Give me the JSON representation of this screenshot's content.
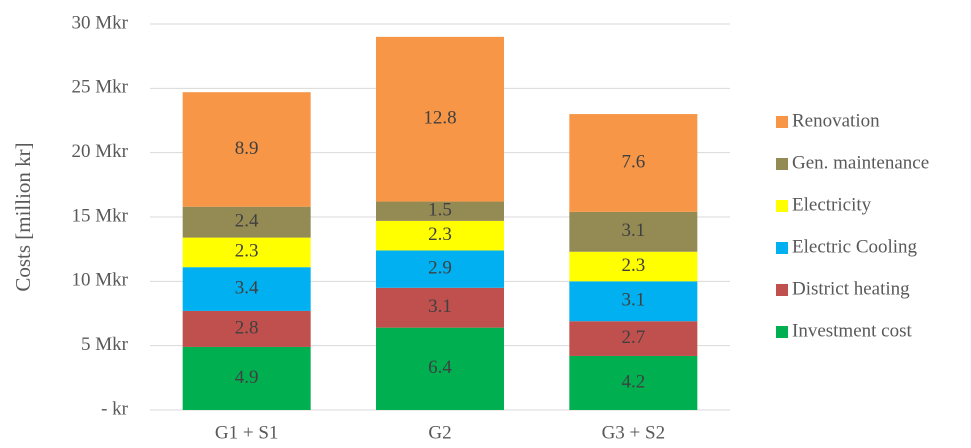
{
  "chart_data": {
    "type": "stacked_bar",
    "y_label": "Costs [million kr]",
    "categories": [
      "G1 + S1",
      "G2",
      "G3 + S2"
    ],
    "series": [
      {
        "name": "Investment cost",
        "color": "#00b050",
        "values": [
          4.9,
          6.4,
          4.2
        ]
      },
      {
        "name": "District heating",
        "color": "#c0504d",
        "values": [
          2.8,
          3.1,
          2.7
        ]
      },
      {
        "name": "Electric Cooling",
        "color": "#00b0f0",
        "values": [
          3.4,
          2.9,
          3.1
        ]
      },
      {
        "name": "Electricity",
        "color": "#ffff00",
        "values": [
          2.3,
          2.3,
          2.3
        ]
      },
      {
        "name": "Gen. maintenance",
        "color": "#948a54",
        "values": [
          2.4,
          1.5,
          3.1
        ]
      },
      {
        "name": "Renovation",
        "color": "#f79646",
        "values": [
          8.9,
          12.8,
          7.6
        ]
      }
    ],
    "ylim": [
      0,
      30
    ],
    "yticks": [
      {
        "value": 0,
        "label": "- kr"
      },
      {
        "value": 5,
        "label": "5 Mkr"
      },
      {
        "value": 10,
        "label": "10 Mkr"
      },
      {
        "value": 15,
        "label": "15 Mkr"
      },
      {
        "value": 20,
        "label": "20 Mkr"
      },
      {
        "value": 25,
        "label": "25 Mkr"
      },
      {
        "value": 30,
        "label": "30 Mkr"
      }
    ],
    "grid": true,
    "legend": "right"
  }
}
